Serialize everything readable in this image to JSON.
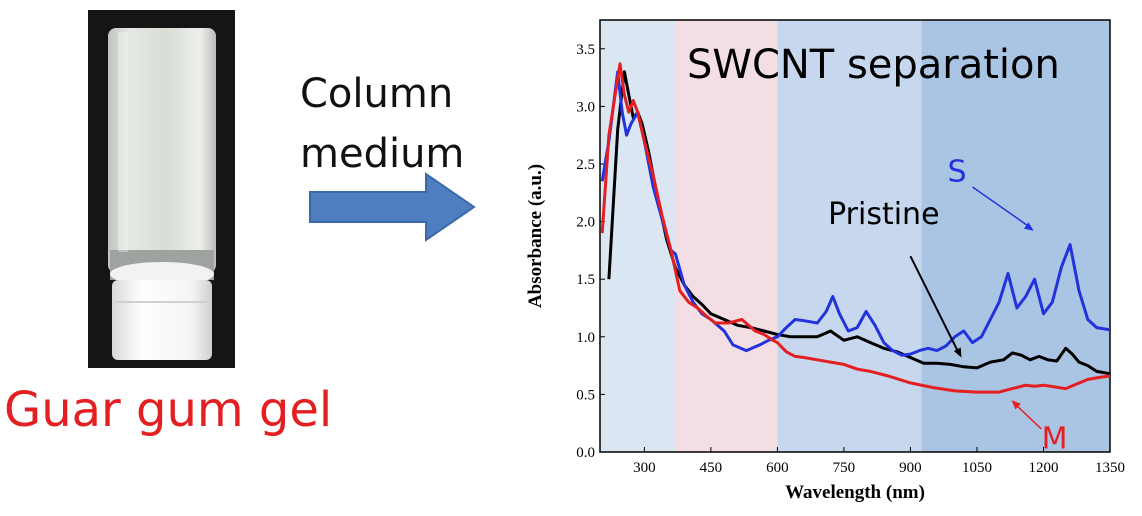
{
  "photo": {
    "caption": "Guar gum gel"
  },
  "process": {
    "label_line1": "Column",
    "label_line2": "medium",
    "arrow_color": "#4f7ec0"
  },
  "chart_data": {
    "type": "line",
    "title": "SWCNT separation",
    "xlabel": "Wavelength (nm)",
    "ylabel": "Absorbance (a.u.)",
    "xlim": [
      200,
      1350
    ],
    "ylim": [
      0.0,
      3.75
    ],
    "xticks": [
      "300",
      "450",
      "600",
      "750",
      "900",
      "1050",
      "1200",
      "1350"
    ],
    "yticks": [
      "0.0",
      "0.5",
      "1.0",
      "1.5",
      "2.0",
      "2.5",
      "3.0",
      "3.5"
    ],
    "background_bands": [
      {
        "from": 200,
        "to": 370,
        "color": "#dbe6f3"
      },
      {
        "from": 370,
        "to": 600,
        "color": "#f3dfe3"
      },
      {
        "from": 600,
        "to": 925,
        "color": "#c7d8ee"
      },
      {
        "from": 925,
        "to": 1350,
        "color": "#aac4e3"
      }
    ],
    "annotations": [
      {
        "text": "Pristine",
        "series": "Pristine",
        "color": "#000000"
      },
      {
        "text": "S",
        "series": "S",
        "color": "#2233dd"
      },
      {
        "text": "M",
        "series": "M",
        "color": "#e41f22"
      }
    ],
    "series": [
      {
        "name": "Pristine",
        "color": "#000000",
        "x": [
          220,
          240,
          255,
          265,
          275,
          285,
          295,
          310,
          330,
          350,
          370,
          390,
          410,
          430,
          450,
          480,
          510,
          540,
          570,
          600,
          630,
          660,
          690,
          720,
          750,
          780,
          810,
          840,
          870,
          900,
          930,
          960,
          990,
          1020,
          1050,
          1080,
          1110,
          1130,
          1150,
          1170,
          1190,
          1210,
          1230,
          1250,
          1265,
          1280,
          1300,
          1320,
          1350
        ],
        "y": [
          1.5,
          2.8,
          3.3,
          3.1,
          2.9,
          2.95,
          2.85,
          2.6,
          2.2,
          1.85,
          1.6,
          1.45,
          1.35,
          1.28,
          1.2,
          1.15,
          1.1,
          1.08,
          1.05,
          1.02,
          1.0,
          1.0,
          1.0,
          1.05,
          0.97,
          1.0,
          0.95,
          0.9,
          0.87,
          0.82,
          0.77,
          0.77,
          0.76,
          0.74,
          0.73,
          0.78,
          0.8,
          0.86,
          0.84,
          0.8,
          0.83,
          0.8,
          0.79,
          0.9,
          0.85,
          0.78,
          0.75,
          0.7,
          0.68
        ]
      },
      {
        "name": "S",
        "color": "#2233dd",
        "x": [
          205,
          220,
          240,
          250,
          260,
          270,
          285,
          300,
          320,
          345,
          360,
          370,
          390,
          410,
          430,
          450,
          480,
          500,
          530,
          560,
          580,
          600,
          620,
          640,
          660,
          690,
          710,
          725,
          740,
          760,
          780,
          800,
          820,
          840,
          860,
          880,
          900,
          920,
          940,
          960,
          980,
          1000,
          1020,
          1040,
          1060,
          1080,
          1100,
          1120,
          1140,
          1160,
          1180,
          1200,
          1220,
          1240,
          1260,
          1280,
          1300,
          1320,
          1350
        ],
        "y": [
          2.35,
          2.7,
          3.3,
          2.95,
          2.75,
          2.85,
          2.95,
          2.7,
          2.3,
          1.95,
          1.75,
          1.72,
          1.45,
          1.3,
          1.2,
          1.15,
          1.05,
          0.93,
          0.88,
          0.93,
          0.97,
          1.0,
          1.08,
          1.15,
          1.14,
          1.12,
          1.22,
          1.35,
          1.2,
          1.05,
          1.08,
          1.22,
          1.1,
          0.95,
          0.88,
          0.84,
          0.85,
          0.88,
          0.9,
          0.88,
          0.92,
          1.0,
          1.05,
          0.95,
          1.0,
          1.15,
          1.3,
          1.55,
          1.25,
          1.35,
          1.5,
          1.2,
          1.3,
          1.6,
          1.8,
          1.4,
          1.15,
          1.08,
          1.06
        ]
      },
      {
        "name": "M",
        "color": "#e41f22",
        "x": [
          205,
          220,
          245,
          255,
          265,
          275,
          285,
          300,
          320,
          340,
          360,
          380,
          400,
          420,
          440,
          460,
          490,
          520,
          550,
          570,
          590,
          600,
          620,
          640,
          660,
          690,
          720,
          750,
          780,
          810,
          850,
          900,
          950,
          1000,
          1050,
          1100,
          1130,
          1160,
          1180,
          1200,
          1250,
          1300,
          1330,
          1350
        ],
        "y": [
          1.9,
          2.75,
          3.37,
          3.1,
          2.95,
          3.05,
          2.95,
          2.7,
          2.4,
          2.05,
          1.75,
          1.4,
          1.3,
          1.25,
          1.18,
          1.12,
          1.12,
          1.15,
          1.05,
          1.02,
          0.97,
          0.95,
          0.87,
          0.83,
          0.82,
          0.8,
          0.78,
          0.76,
          0.72,
          0.7,
          0.66,
          0.6,
          0.56,
          0.53,
          0.52,
          0.52,
          0.55,
          0.58,
          0.57,
          0.58,
          0.55,
          0.63,
          0.65,
          0.66
        ]
      }
    ]
  }
}
